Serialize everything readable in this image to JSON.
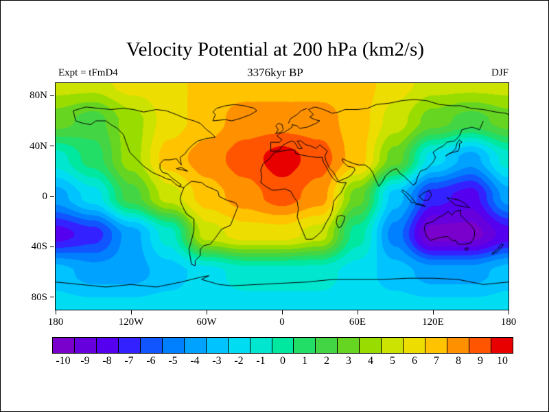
{
  "header": {
    "title": "Velocity Potential at 200 hPa (km2/s)",
    "subtitle": "3376kyr BP",
    "left_annotation": "Expt = tFmD4",
    "right_annotation": "DJF"
  },
  "chart_data": {
    "type": "heatmap",
    "title": "Velocity Potential at 200 hPa (km2/s)",
    "subtitle": "3376kyr BP",
    "experiment": "Expt = tFmD4",
    "season": "DJF",
    "units": "km2/s",
    "projection": "equirectangular",
    "value_range": [
      -10,
      10
    ],
    "lon_ticks": [
      "180",
      "120W",
      "60W",
      "0",
      "60E",
      "120E",
      "180"
    ],
    "lon_tick_values": [
      -180,
      -120,
      -60,
      0,
      60,
      120,
      180
    ],
    "lat_ticks": [
      "80N",
      "40N",
      "0",
      "40S",
      "80S"
    ],
    "lat_tick_values": [
      80,
      40,
      0,
      -40,
      -80
    ],
    "levels": [
      -10,
      -9,
      -8,
      -7,
      -6,
      -5,
      -4,
      -3,
      -2,
      -1,
      0,
      1,
      2,
      3,
      4,
      5,
      6,
      7,
      8,
      9,
      10
    ],
    "level_labels": [
      "-10",
      "-9",
      "-8",
      "-7",
      "-6",
      "-5",
      "-4",
      "-3",
      "-2",
      "-1",
      "0",
      "1",
      "2",
      "3",
      "4",
      "5",
      "6",
      "7",
      "8",
      "9",
      "10"
    ],
    "palette": [
      "#7A00CC",
      "#6600DD",
      "#5500EE",
      "#3322FF",
      "#1155FF",
      "#0080FF",
      "#00A2FF",
      "#00C3FF",
      "#00DDF2",
      "#00E6CF",
      "#00E8A0",
      "#22DD66",
      "#44D544",
      "#66D522",
      "#99DD00",
      "#CCE200",
      "#EEDD00",
      "#FFC300",
      "#FF9100",
      "#FF5500",
      "#E80000"
    ],
    "grid": {
      "lons": [
        -180,
        -150,
        -120,
        -90,
        -60,
        -30,
        0,
        30,
        60,
        90,
        120,
        150,
        180
      ],
      "lats": [
        90,
        60,
        30,
        0,
        -30,
        -60,
        -90
      ],
      "values": [
        [
          5,
          5,
          6,
          6,
          7,
          7,
          7,
          7,
          7,
          6,
          5,
          5,
          5
        ],
        [
          3,
          2,
          4,
          6,
          7,
          8,
          8,
          8,
          7,
          5,
          3,
          2,
          3
        ],
        [
          -1,
          1,
          4,
          7,
          8,
          9,
          10,
          9,
          7,
          3,
          -2,
          -4,
          -1
        ],
        [
          -4,
          -2,
          2,
          5,
          7,
          8,
          9,
          8,
          3,
          -3,
          -7,
          -8,
          -4
        ],
        [
          -8,
          -7,
          -4,
          -1,
          5,
          6,
          6,
          5,
          0,
          -5,
          -10,
          -10,
          -8
        ],
        [
          -3,
          -4,
          -4,
          -3,
          -2,
          -1,
          -1,
          -1,
          -2,
          -3,
          -4,
          -4,
          -3
        ],
        [
          -2,
          -2,
          -2,
          -2,
          -2,
          -2,
          -2,
          -2,
          -2,
          -2,
          -2,
          -2,
          -2
        ]
      ]
    }
  }
}
